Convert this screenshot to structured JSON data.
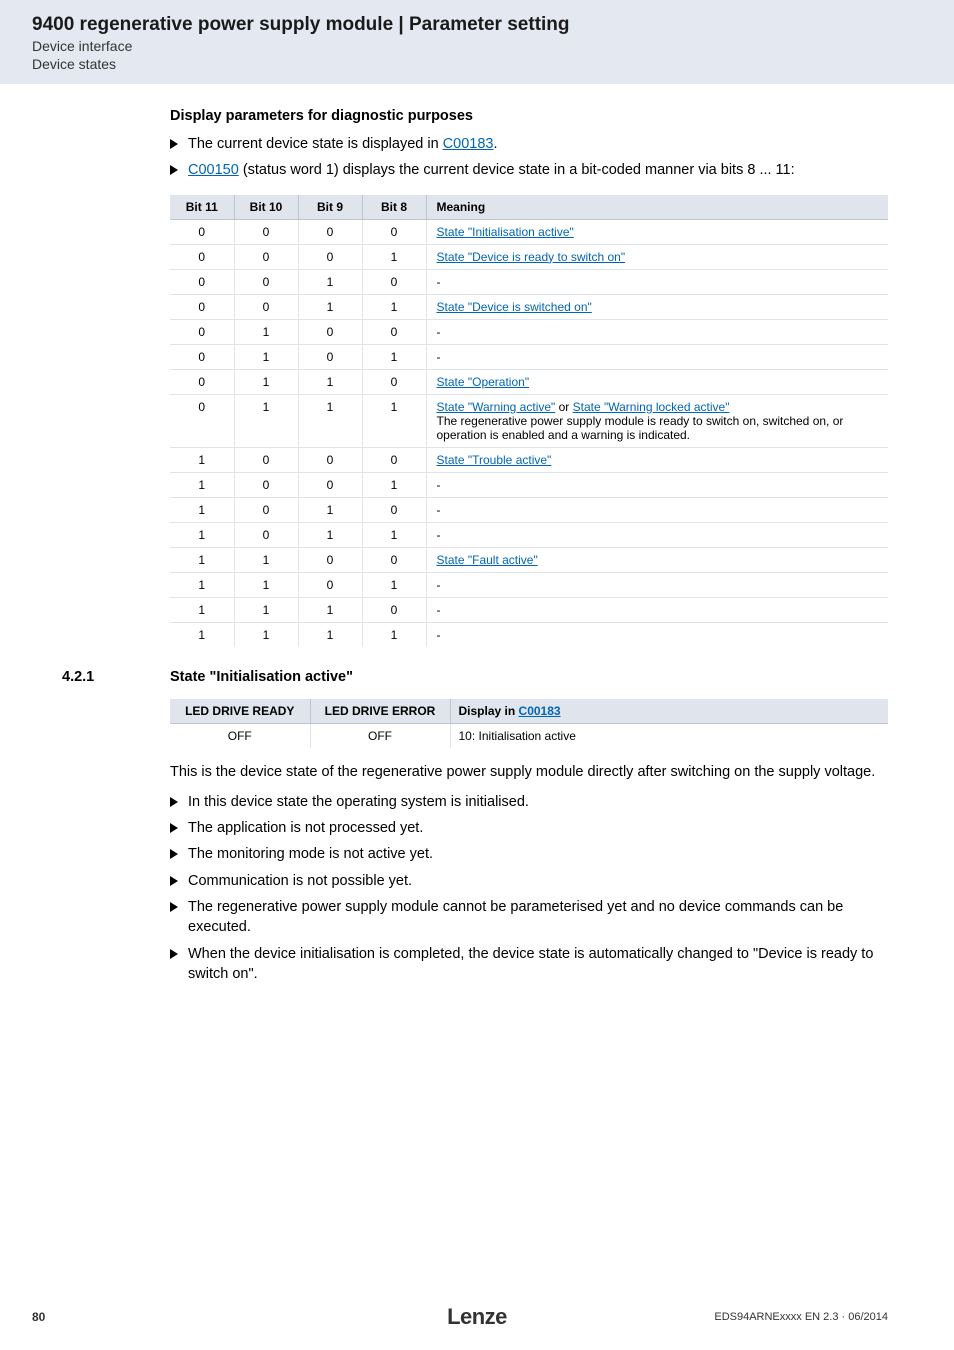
{
  "header": {
    "title": "9400 regenerative power supply module | Parameter setting",
    "line1": "Device interface",
    "line2": "Device states"
  },
  "intro": {
    "heading": "Display parameters for diagnostic purposes",
    "bullets": [
      {
        "pre": "The current device state is displayed in ",
        "link": "C00183",
        "post": "."
      },
      {
        "link2": "C00150",
        "mid": " (status word 1) displays the current device state in a bit-coded manner via bits 8 ... 11:"
      }
    ]
  },
  "bits_table": {
    "headers": [
      "Bit 11",
      "Bit 10",
      "Bit 9",
      "Bit 8",
      "Meaning"
    ],
    "rows": [
      {
        "b": [
          "0",
          "0",
          "0",
          "0"
        ],
        "link": "State \"Initialisation active\""
      },
      {
        "b": [
          "0",
          "0",
          "0",
          "1"
        ],
        "link": "State \"Device is ready to switch on\""
      },
      {
        "b": [
          "0",
          "0",
          "1",
          "0"
        ],
        "plain": "-"
      },
      {
        "b": [
          "0",
          "0",
          "1",
          "1"
        ],
        "link": "State \"Device is switched on\""
      },
      {
        "b": [
          "0",
          "1",
          "0",
          "0"
        ],
        "plain": "-"
      },
      {
        "b": [
          "0",
          "1",
          "0",
          "1"
        ],
        "plain": "-"
      },
      {
        "b": [
          "0",
          "1",
          "1",
          "0"
        ],
        "link": "State \"Operation\""
      },
      {
        "b": [
          "0",
          "1",
          "1",
          "1"
        ],
        "link": "State \"Warning active\"",
        "plain_mid": " or ",
        "link2": "State \"Warning locked active\"",
        "extra": "The regenerative power supply module is ready to switch on, switched on, or operation is enabled and a warning is indicated."
      },
      {
        "b": [
          "1",
          "0",
          "0",
          "0"
        ],
        "link": "State \"Trouble active\""
      },
      {
        "b": [
          "1",
          "0",
          "0",
          "1"
        ],
        "plain": "-"
      },
      {
        "b": [
          "1",
          "0",
          "1",
          "0"
        ],
        "plain": "-"
      },
      {
        "b": [
          "1",
          "0",
          "1",
          "1"
        ],
        "plain": "-"
      },
      {
        "b": [
          "1",
          "1",
          "0",
          "0"
        ],
        "link": "State \"Fault active\""
      },
      {
        "b": [
          "1",
          "1",
          "0",
          "1"
        ],
        "plain": "-"
      },
      {
        "b": [
          "1",
          "1",
          "1",
          "0"
        ],
        "plain": "-"
      },
      {
        "b": [
          "1",
          "1",
          "1",
          "1"
        ],
        "plain": "-"
      }
    ]
  },
  "section": {
    "num": "4.2.1",
    "title": "State \"Initialisation active\""
  },
  "led_table": {
    "headers": {
      "c1": "LED DRIVE READY",
      "c2": "LED DRIVE ERROR",
      "c3_pre": "Display in ",
      "c3_link": "C00183"
    },
    "row": {
      "c1": "OFF",
      "c2": "OFF",
      "c3": "10: Initialisation active"
    }
  },
  "after_text": "This is the device state of the regenerative power supply module directly after switching on the supply voltage.",
  "bullets2": [
    "In this device state the operating system is initialised.",
    "The application is not processed yet.",
    "The monitoring mode is not active yet.",
    "Communication is not possible yet.",
    "The regenerative power supply module cannot be parameterised yet and no device commands can be executed.",
    "When the device initialisation is completed, the device state is automatically changed to \"Device is ready to switch on\"."
  ],
  "footer": {
    "page": "80",
    "brand": "Lenze",
    "doc": "EDS94ARNExxxx EN 2.3 · 06/2014"
  }
}
